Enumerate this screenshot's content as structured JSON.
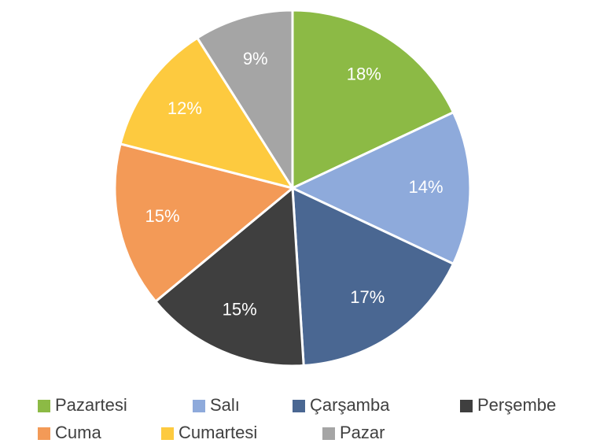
{
  "chart_data": {
    "type": "pie",
    "categories": [
      "Pazartesi",
      "Salı",
      "Çarşamba",
      "Perşembe",
      "Cuma",
      "Cumartesi",
      "Pazar"
    ],
    "values": [
      18,
      14,
      17,
      15,
      15,
      12,
      9
    ],
    "value_labels": [
      "18%",
      "14%",
      "17%",
      "15%",
      "15%",
      "12%",
      "9%"
    ],
    "colors": [
      "#8cba45",
      "#8eaadb",
      "#4a6792",
      "#3f3f3f",
      "#f39a57",
      "#fdca3f",
      "#a5a5a5"
    ],
    "legend": "bottom"
  }
}
